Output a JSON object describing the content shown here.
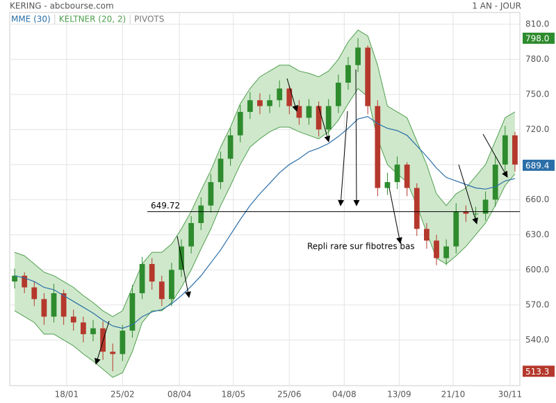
{
  "chart_data": {
    "type": "candlestick",
    "title": "KERING - abcbourse.com",
    "period": "1 AN - JOUR",
    "legend": [
      {
        "name": "MME (30)",
        "color": "#2a6ea8"
      },
      {
        "name": "KELTNER (20, 2)",
        "color": "#4f9f4f"
      },
      {
        "name": "PIVOTS",
        "color": "#777777"
      }
    ],
    "xlim": [
      -0.5,
      51.5
    ],
    "xticks": [
      {
        "value": 5.3,
        "label": "18/01"
      },
      {
        "value": 11.0,
        "label": "25/02"
      },
      {
        "value": 16.8,
        "label": "08/04"
      },
      {
        "value": 22.3,
        "label": "18/05"
      },
      {
        "value": 28.0,
        "label": "25/06"
      },
      {
        "value": 33.6,
        "label": "04/08"
      },
      {
        "value": 39.2,
        "label": "13/09"
      },
      {
        "value": 44.7,
        "label": "21/10"
      },
      {
        "value": 50.5,
        "label": "30/11"
      }
    ],
    "ylim": [
      501,
      820
    ],
    "yticks": [
      {
        "value": 540,
        "label": "540.0"
      },
      {
        "value": 570,
        "label": "570.0"
      },
      {
        "value": 600,
        "label": "600.0"
      },
      {
        "value": 630,
        "label": "630.0"
      },
      {
        "value": 660,
        "label": "660.0"
      },
      {
        "value": 690,
        "label": "690.0"
      },
      {
        "value": 720,
        "label": "720.0"
      },
      {
        "value": 750,
        "label": "750.0"
      },
      {
        "value": 780,
        "label": "780.0"
      },
      {
        "value": 810,
        "label": "810.0"
      }
    ],
    "grid": true,
    "up_color": "#2e8b2e",
    "down_color": "#b5382c",
    "open": [
      590,
      595,
      585,
      575,
      560,
      580,
      560,
      555,
      545,
      550,
      530,
      528,
      548,
      580,
      605,
      590,
      575,
      600,
      620,
      640,
      655,
      675,
      695,
      715,
      735,
      745,
      740,
      745,
      755,
      740,
      730,
      740,
      720,
      740,
      760,
      775,
      790,
      740,
      670,
      675,
      690,
      670,
      635,
      625,
      610,
      620,
      650,
      648,
      648,
      660,
      690,
      715
    ],
    "close": [
      595,
      585,
      575,
      560,
      580,
      560,
      555,
      545,
      550,
      530,
      528,
      548,
      580,
      605,
      590,
      575,
      600,
      620,
      640,
      655,
      675,
      695,
      715,
      735,
      745,
      740,
      745,
      755,
      740,
      730,
      740,
      720,
      740,
      760,
      775,
      790,
      740,
      670,
      675,
      690,
      670,
      635,
      625,
      610,
      620,
      650,
      648,
      648,
      660,
      690,
      715,
      690
    ],
    "high": [
      601,
      598,
      590,
      580,
      588,
      583,
      566,
      560,
      557,
      556,
      537,
      553,
      587,
      611,
      610,
      595,
      606,
      626,
      646,
      662,
      682,
      701,
      721,
      741,
      752,
      751,
      750,
      762,
      758,
      745,
      746,
      744,
      746,
      767,
      782,
      798,
      792,
      745,
      683,
      697,
      692,
      674,
      640,
      630,
      626,
      657,
      655,
      654,
      667,
      697,
      723,
      718
    ],
    "low": [
      584,
      580,
      569,
      553,
      555,
      553,
      548,
      538,
      539,
      523,
      513.3,
      522,
      542,
      575,
      583,
      569,
      569,
      594,
      614,
      634,
      649,
      669,
      689,
      709,
      729,
      733,
      734,
      739,
      733,
      724,
      724,
      714,
      714,
      734,
      754,
      769,
      733,
      663,
      664,
      669,
      663,
      629,
      618,
      604,
      604,
      614,
      641,
      642,
      642,
      654,
      684,
      684
    ],
    "mme": [
      595,
      593,
      590,
      585,
      583,
      578,
      573,
      568,
      563,
      557,
      552,
      550,
      553,
      560,
      564,
      566,
      571,
      578,
      586,
      595,
      606,
      617,
      630,
      643,
      655,
      665,
      674,
      683,
      690,
      695,
      701,
      704,
      708,
      714,
      721,
      729,
      731,
      725,
      721,
      719,
      715,
      706,
      697,
      687,
      679,
      676,
      673,
      670,
      669,
      671,
      676,
      678
    ],
    "keltner_upper": [
      615,
      612,
      605,
      598,
      595,
      590,
      585,
      578,
      572,
      565,
      560,
      565,
      585,
      605,
      615,
      615,
      622,
      635,
      650,
      668,
      685,
      705,
      722,
      742,
      755,
      765,
      770,
      775,
      775,
      770,
      768,
      765,
      770,
      780,
      795,
      805,
      800,
      775,
      740,
      735,
      730,
      710,
      690,
      665,
      655,
      665,
      670,
      680,
      690,
      710,
      730,
      735
    ],
    "keltner_lower": [
      565,
      560,
      555,
      545,
      545,
      540,
      535,
      528,
      522,
      515,
      508,
      512,
      530,
      555,
      565,
      565,
      572,
      585,
      600,
      618,
      635,
      655,
      672,
      690,
      705,
      712,
      718,
      722,
      722,
      718,
      715,
      712,
      718,
      728,
      742,
      755,
      748,
      712,
      690,
      682,
      675,
      655,
      632,
      610,
      605,
      612,
      620,
      630,
      640,
      655,
      672,
      682
    ],
    "hline": 649.72,
    "annotation": "Repli rare sur fibotres bas",
    "price_tags": [
      {
        "value": 798,
        "label": "798.0",
        "color": "#2e8b2e"
      },
      {
        "value": 689.4,
        "color": "#2a6ea8"
      },
      {
        "value": 513.3,
        "color": "#b5382c"
      }
    ]
  }
}
